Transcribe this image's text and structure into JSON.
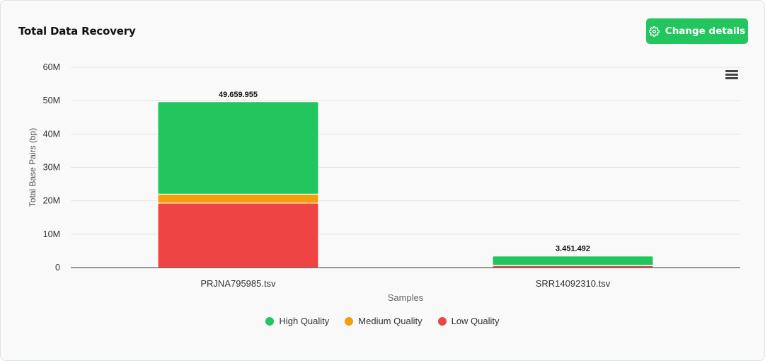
{
  "header": {
    "title": "Total Data Recovery",
    "button_label": "Change details",
    "button_icon": "gear-icon",
    "menu_icon": "hamburger-menu-icon"
  },
  "colors": {
    "high": "#22c55e",
    "medium": "#f59e0b",
    "low": "#ef4444",
    "accent": "#22c55e"
  },
  "chart_data": {
    "type": "bar",
    "stacked": true,
    "categories": [
      "PRJNA795985.tsv",
      "SRR14092310.tsv"
    ],
    "series": [
      {
        "name": "Low Quality",
        "color": "#ef4444",
        "values": [
          19300000,
          550000
        ]
      },
      {
        "name": "Medium Quality",
        "color": "#f59e0b",
        "values": [
          2700000,
          100000
        ]
      },
      {
        "name": "High Quality",
        "color": "#22c55e",
        "values": [
          27659955,
          2801492
        ]
      }
    ],
    "totals": [
      49659955,
      3451492
    ],
    "total_labels": [
      "49.659.955",
      "3.451.492"
    ],
    "xlabel": "Samples",
    "ylabel": "Total Base Pairs (bp)",
    "ylim": [
      0,
      60000000
    ],
    "yticks": [
      0,
      10000000,
      20000000,
      30000000,
      40000000,
      50000000,
      60000000
    ],
    "ytick_labels": [
      "0",
      "10M",
      "20M",
      "30M",
      "40M",
      "50M",
      "60M"
    ],
    "grid": true,
    "legend_position": "bottom-center",
    "legend": [
      "High Quality",
      "Medium Quality",
      "Low Quality"
    ]
  }
}
